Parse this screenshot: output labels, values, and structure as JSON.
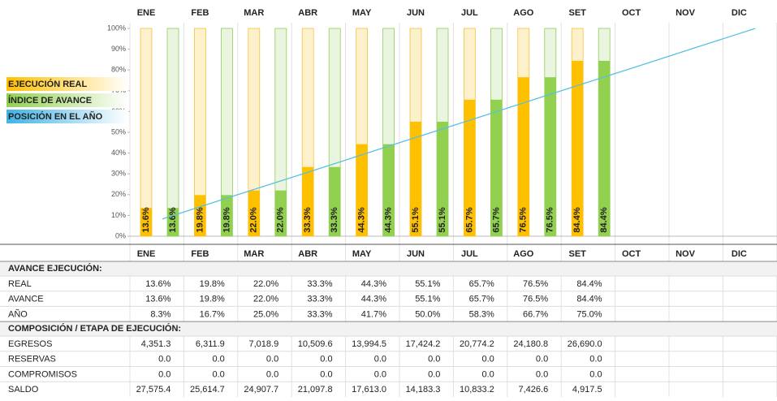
{
  "chart_data": {
    "type": "bar",
    "categories": [
      "ENE",
      "FEB",
      "MAR",
      "ABR",
      "MAY",
      "JUN",
      "JUL",
      "AGO",
      "SET",
      "OCT",
      "NOV",
      "DIC"
    ],
    "ylim": [
      0,
      100
    ],
    "yticks": [
      {
        "value": 0,
        "label": "0%"
      },
      {
        "value": 10,
        "label": "10%"
      },
      {
        "value": 20,
        "label": "20%"
      },
      {
        "value": 30,
        "label": "30%"
      },
      {
        "value": 40,
        "label": "40%"
      },
      {
        "value": 50,
        "label": "50%"
      },
      {
        "value": 60,
        "label": "60%"
      },
      {
        "value": 70,
        "label": "70%"
      },
      {
        "value": 80,
        "label": "80%"
      },
      {
        "value": 90,
        "label": "90%"
      },
      {
        "value": 100,
        "label": "100%"
      }
    ],
    "series": [
      {
        "name": "EJECUCIÓN REAL",
        "color": "#ffc000",
        "light": "#fdf1cc",
        "edge": "#f5c242",
        "values": [
          13.6,
          19.8,
          22.0,
          33.3,
          44.3,
          55.1,
          65.7,
          76.5,
          84.4,
          null,
          null,
          null
        ],
        "value_labels": [
          "13.6%",
          "19.8%",
          "22.0%",
          "33.3%",
          "44.3%",
          "55.1%",
          "65.7%",
          "76.5%",
          "84.4%",
          null,
          null,
          null
        ]
      },
      {
        "name": "ÍNDICE DE AVANCE",
        "color": "#92d050",
        "light": "#e9f5de",
        "edge": "#8fce5a",
        "values": [
          13.6,
          19.8,
          22.0,
          33.3,
          44.3,
          55.1,
          65.7,
          76.5,
          84.4,
          null,
          null,
          null
        ],
        "value_labels": [
          "13.6%",
          "19.8%",
          "22.0%",
          "33.3%",
          "44.3%",
          "55.1%",
          "65.7%",
          "76.5%",
          "84.4%",
          null,
          null,
          null
        ]
      },
      {
        "name": "POSICIÓN EN EL AÑO",
        "color": "#5bc0de",
        "type": "line",
        "values": [
          8.3,
          16.7,
          25.0,
          33.3,
          41.7,
          50.0,
          58.3,
          66.7,
          75.0,
          83.3,
          91.7,
          100
        ]
      }
    ]
  },
  "table": {
    "columns": [
      "ENE",
      "FEB",
      "MAR",
      "ABR",
      "MAY",
      "JUN",
      "JUL",
      "AGO",
      "SET",
      "OCT",
      "NOV",
      "DIC"
    ],
    "sections": [
      {
        "title": "AVANCE EJECUCIÓN:",
        "rows": [
          {
            "label": "REAL",
            "values": [
              "13.6%",
              "19.8%",
              "22.0%",
              "33.3%",
              "44.3%",
              "55.1%",
              "65.7%",
              "76.5%",
              "84.4%"
            ]
          },
          {
            "label": "AVANCE",
            "values": [
              "13.6%",
              "19.8%",
              "22.0%",
              "33.3%",
              "44.3%",
              "55.1%",
              "65.7%",
              "76.5%",
              "84.4%"
            ]
          },
          {
            "label": "AÑO",
            "values": [
              "8.3%",
              "16.7%",
              "25.0%",
              "33.3%",
              "41.7%",
              "50.0%",
              "58.3%",
              "66.7%",
              "75.0%"
            ]
          }
        ]
      },
      {
        "title": "COMPOSICIÓN / ETAPA DE EJECUCIÓN:",
        "rows": [
          {
            "label": "EGRESOS",
            "values": [
              "4,351.3",
              "6,311.9",
              "7,018.9",
              "10,509.6",
              "13,994.5",
              "17,424.2",
              "20,774.2",
              "24,180.8",
              "26,690.0"
            ]
          },
          {
            "label": "RESERVAS",
            "values": [
              "0.0",
              "0.0",
              "0.0",
              "0.0",
              "0.0",
              "0.0",
              "0.0",
              "0.0",
              "0.0"
            ]
          },
          {
            "label": "COMPROMISOS",
            "values": [
              "0.0",
              "0.0",
              "0.0",
              "0.0",
              "0.0",
              "0.0",
              "0.0",
              "0.0",
              "0.0"
            ]
          },
          {
            "label": "SALDO",
            "values": [
              "27,575.4",
              "25,614.7",
              "24,907.7",
              "21,097.8",
              "17,613.0",
              "14,183.3",
              "10,833.2",
              "7,426.6",
              "4,917.5"
            ]
          }
        ]
      }
    ]
  }
}
